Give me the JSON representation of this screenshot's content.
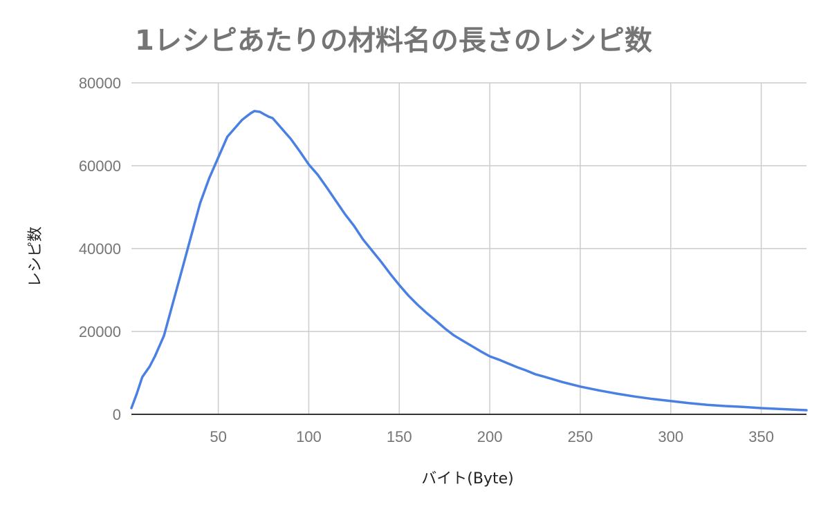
{
  "chart_data": {
    "type": "line",
    "title": "1レシピあたりの材料名の長さのレシピ数",
    "xlabel": "バイト(Byte)",
    "ylabel": "レシピ数",
    "xlim": [
      2,
      375
    ],
    "ylim": [
      0,
      80000
    ],
    "xticks": [
      50,
      100,
      150,
      200,
      250,
      300,
      350
    ],
    "yticks": [
      0,
      20000,
      40000,
      60000,
      80000
    ],
    "x_tick_labels": [
      "50",
      "100",
      "150",
      "200",
      "250",
      "300",
      "350"
    ],
    "y_tick_labels": [
      "0",
      "20000",
      "40000",
      "60000",
      "80000"
    ],
    "grid": true,
    "colors": {
      "series": "#4a80e2",
      "grid": "#cccccc",
      "title": "#757575"
    },
    "series": [
      {
        "x": [
          2,
          5,
          8,
          12,
          15,
          20,
          25,
          30,
          35,
          40,
          45,
          50,
          55,
          60,
          63,
          65,
          68,
          70,
          73,
          75,
          78,
          80,
          85,
          88,
          90,
          95,
          100,
          105,
          110,
          115,
          120,
          125,
          130,
          135,
          140,
          145,
          150,
          155,
          160,
          165,
          170,
          175,
          180,
          185,
          190,
          195,
          200,
          205,
          210,
          215,
          220,
          225,
          230,
          240,
          250,
          260,
          270,
          280,
          290,
          300,
          310,
          320,
          330,
          340,
          350,
          360,
          375
        ],
        "y": [
          1500,
          5000,
          9000,
          11500,
          14000,
          19000,
          27000,
          35000,
          43000,
          51000,
          57000,
          62000,
          67000,
          69500,
          71000,
          71700,
          72700,
          73200,
          73000,
          72500,
          71800,
          71500,
          69000,
          67500,
          66500,
          63500,
          60300,
          57800,
          54700,
          51500,
          48300,
          45500,
          42200,
          39500,
          36800,
          33900,
          31200,
          28700,
          26500,
          24500,
          22700,
          20800,
          19100,
          17800,
          16500,
          15200,
          14000,
          13200,
          12300,
          11400,
          10600,
          9700,
          9100,
          7800,
          6700,
          5800,
          5000,
          4300,
          3700,
          3200,
          2700,
          2300,
          2000,
          1800,
          1500,
          1300,
          1000
        ]
      }
    ]
  }
}
